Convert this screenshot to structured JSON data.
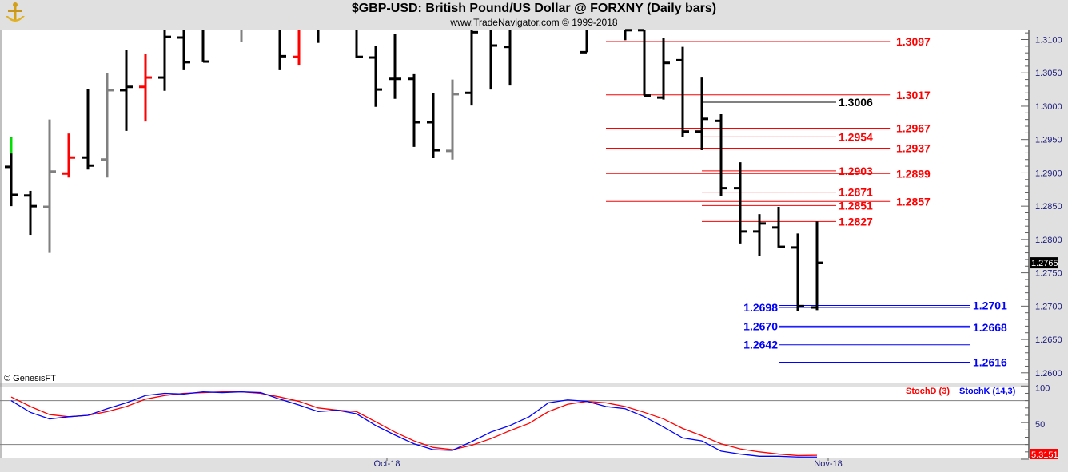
{
  "header": {
    "title": "$GBP-USD:  British Pound/US Dollar @ FORXNY  (Daily bars)",
    "subtitle": "www.TradeNavigator.com © 1999-2018"
  },
  "logo_icon": "gold-anchor-logo",
  "copyright": "© GenesisFT",
  "colors": {
    "up": "#000000",
    "red": "#ff0000",
    "gray": "#808080",
    "green": "#00e000",
    "stochK": "#0000ff",
    "stochD": "#ff0000",
    "blue_level": "#0000ff"
  },
  "chart_data": [
    {
      "type": "ohlc",
      "title": "$GBP-USD:  British Pound/US Dollar @ FORXNY  (Daily bars)",
      "ylim": [
        1.2585,
        1.3115
      ],
      "yticks": [
        "1.3100",
        "1.3050",
        "1.3000",
        "1.2950",
        "1.2900",
        "1.2850",
        "1.2800",
        "1.2750",
        "1.2700",
        "1.2650",
        "1.2600"
      ],
      "xticks": [
        {
          "label": "Oct-18",
          "bar": 20
        },
        {
          "label": "Nov-18",
          "bar": 43
        }
      ],
      "last_price": "1.2765",
      "bars": [
        {
          "o": 1.2909,
          "h": 1.2953,
          "l": 1.285,
          "c": 1.2867,
          "color": "black",
          "top_color": "green",
          "top_until": 1.2929
        },
        {
          "o": 1.2866,
          "h": 1.2873,
          "l": 1.2807,
          "c": 1.285,
          "color": "black"
        },
        {
          "o": 1.2849,
          "h": 1.298,
          "l": 1.278,
          "c": 1.2902,
          "color": "gray"
        },
        {
          "o": 1.2899,
          "h": 1.2959,
          "l": 1.2893,
          "c": 1.2923,
          "color": "red"
        },
        {
          "o": 1.2923,
          "h": 1.3026,
          "l": 1.2905,
          "c": 1.2911,
          "color": "black"
        },
        {
          "o": 1.292,
          "h": 1.305,
          "l": 1.2893,
          "c": 1.3024,
          "color": "gray"
        },
        {
          "o": 1.3024,
          "h": 1.3085,
          "l": 1.2963,
          "c": 1.3029,
          "color": "black"
        },
        {
          "o": 1.3029,
          "h": 1.3078,
          "l": 1.2977,
          "c": 1.3043,
          "color": "red"
        },
        {
          "o": 1.3043,
          "h": null,
          "l": 1.3023,
          "c": 1.3104,
          "color": "black"
        },
        {
          "o": 1.3103,
          "h": null,
          "l": 1.3054,
          "c": 1.3066,
          "color": "black"
        },
        {
          "o": null,
          "h": null,
          "l": 1.3066,
          "c": 1.3067,
          "color": "black"
        },
        null,
        {
          "o": null,
          "h": null,
          "l": 1.3097,
          "c": null,
          "color": "gray"
        },
        null,
        {
          "o": null,
          "h": null,
          "l": 1.3054,
          "c": 1.3075,
          "color": "black"
        },
        {
          "o": 1.3074,
          "h": null,
          "l": 1.3061,
          "c": null,
          "color": "red"
        },
        {
          "o": null,
          "h": null,
          "l": 1.3095,
          "c": null,
          "color": "black"
        },
        null,
        {
          "o": null,
          "h": null,
          "l": 1.3073,
          "c": 1.3074,
          "color": "black"
        },
        {
          "o": 1.3073,
          "h": 1.309,
          "l": 1.2999,
          "c": 1.3025,
          "color": "black"
        },
        {
          "o": 1.3041,
          "h": 1.3109,
          "l": 1.3011,
          "c": 1.3041,
          "color": "black"
        },
        {
          "o": 1.3041,
          "h": 1.3048,
          "l": 1.2939,
          "c": 1.2976,
          "color": "black"
        },
        {
          "o": 1.2976,
          "h": 1.302,
          "l": 1.2922,
          "c": 1.2934,
          "color": "black"
        },
        {
          "o": 1.2933,
          "h": 1.304,
          "l": 1.292,
          "c": 1.3018,
          "color": "gray"
        },
        {
          "o": 1.302,
          "h": null,
          "l": 1.3001,
          "c": 1.3111,
          "color": "black"
        },
        {
          "o": null,
          "h": null,
          "l": 1.3025,
          "c": 1.3091,
          "color": "black"
        },
        {
          "o": 1.3089,
          "h": null,
          "l": 1.3031,
          "c": null,
          "color": "black"
        },
        null,
        null,
        null,
        {
          "o": 1.3081,
          "h": null,
          "l": 1.3081,
          "c": null,
          "color": "black"
        },
        null,
        {
          "o": null,
          "h": null,
          "l": 1.3099,
          "c": 1.3114,
          "color": "black"
        },
        {
          "o": 1.3114,
          "h": null,
          "l": 1.3016,
          "c": 1.3016,
          "color": "black"
        },
        {
          "o": 1.3013,
          "h": 1.3102,
          "l": 1.301,
          "c": 1.3065,
          "color": "black"
        },
        {
          "o": 1.3069,
          "h": 1.3089,
          "l": 1.2954,
          "c": 1.2962,
          "color": "black"
        },
        {
          "o": 1.2962,
          "h": 1.3043,
          "l": 1.2934,
          "c": 1.2981,
          "color": "black"
        },
        {
          "o": 1.2978,
          "h": 1.2988,
          "l": 1.2865,
          "c": 1.2877,
          "color": "black"
        },
        {
          "o": 1.2877,
          "h": 1.2916,
          "l": 1.2794,
          "c": 1.2812,
          "color": "black"
        },
        {
          "o": 1.2812,
          "h": 1.2838,
          "l": 1.2775,
          "c": 1.2824,
          "color": "black"
        },
        {
          "o": 1.2818,
          "h": 1.2849,
          "l": 1.2788,
          "c": 1.2789,
          "color": "black"
        },
        {
          "o": 1.2788,
          "h": 1.2809,
          "l": 1.2692,
          "c": 1.27,
          "color": "black"
        },
        {
          "o": 1.2698,
          "h": 1.2827,
          "l": 1.2694,
          "c": 1.2765,
          "color": "black"
        }
      ],
      "levels": [
        {
          "label": "1.3097",
          "value": 1.3097,
          "color": "red",
          "from": 31,
          "to": 45.8,
          "side": "right"
        },
        {
          "label": "1.3017",
          "value": 1.3017,
          "color": "red",
          "from": 31,
          "to": 45.8,
          "side": "right"
        },
        {
          "label": "1.2967",
          "value": 1.2967,
          "color": "red",
          "from": 31,
          "to": 45.8,
          "side": "right"
        },
        {
          "label": "1.2937",
          "value": 1.2937,
          "color": "red",
          "from": 31,
          "to": 45.8,
          "side": "right"
        },
        {
          "label": "1.2899",
          "value": 1.2899,
          "color": "red",
          "from": 31,
          "to": 45.8,
          "side": "right"
        },
        {
          "label": "1.2857",
          "value": 1.2857,
          "color": "red",
          "from": 31,
          "to": 45.8,
          "side": "right"
        },
        {
          "label": "1.3006",
          "value": 1.3006,
          "color": "black",
          "from": 36,
          "to": 43,
          "side": "right"
        },
        {
          "label": "1.2954",
          "value": 1.2954,
          "color": "red",
          "from": 36,
          "to": 43,
          "side": "right"
        },
        {
          "label": "1.2903",
          "value": 1.2903,
          "color": "red",
          "from": 36,
          "to": 43,
          "side": "right"
        },
        {
          "label": "1.2871",
          "value": 1.2871,
          "color": "red",
          "from": 36,
          "to": 43,
          "side": "right"
        },
        {
          "label": "1.2851",
          "value": 1.2851,
          "color": "red",
          "from": 36,
          "to": 43,
          "side": "right"
        },
        {
          "label": "1.2827",
          "value": 1.2827,
          "color": "red",
          "from": 36,
          "to": 43,
          "side": "right"
        },
        {
          "label": "1.2698",
          "value": 1.2698,
          "color": "blue",
          "from": 40,
          "to": 50,
          "side": "left"
        },
        {
          "label": "1.2701",
          "value": 1.2701,
          "color": "blue",
          "from": 40,
          "to": 50,
          "side": "right"
        },
        {
          "label": "1.2670",
          "value": 1.267,
          "color": "blue",
          "from": 40,
          "to": 50,
          "side": "left"
        },
        {
          "label": "1.2668",
          "value": 1.2668,
          "color": "blue",
          "from": 40,
          "to": 50,
          "side": "right"
        },
        {
          "label": "1.2642",
          "value": 1.2642,
          "color": "blue",
          "from": 40,
          "to": 50,
          "side": "left"
        },
        {
          "label": "1.2616",
          "value": 1.2616,
          "color": "blue",
          "from": 40,
          "to": 50,
          "side": "right"
        }
      ]
    },
    {
      "type": "line",
      "ylim": [
        0,
        100
      ],
      "yticks": [
        "100",
        "50"
      ],
      "reference_lines": [
        80,
        20
      ],
      "last_value": "5.3151",
      "series": [
        {
          "name": "StochD (3)",
          "color": "red",
          "values": [
            85,
            72,
            61,
            58,
            60,
            65,
            72,
            82,
            87,
            90,
            91,
            92,
            92,
            90,
            85,
            79,
            70,
            67,
            65,
            51,
            37,
            25,
            16,
            13,
            19,
            28,
            39,
            49,
            65,
            75,
            79,
            77,
            72,
            64,
            55,
            42,
            32,
            21,
            14,
            10,
            7,
            5,
            5.3151
          ]
        },
        {
          "name": "StochK (14,3)",
          "color": "blue",
          "values": [
            80,
            64,
            55,
            58,
            60,
            69,
            77,
            87,
            90,
            89,
            92,
            91,
            92,
            91,
            82,
            74,
            65,
            67,
            62,
            46,
            33,
            21,
            13,
            12,
            24,
            37,
            46,
            58,
            77,
            81,
            79,
            72,
            69,
            58,
            44,
            29,
            25,
            11,
            7,
            4,
            4,
            3,
            3
          ]
        }
      ]
    }
  ]
}
